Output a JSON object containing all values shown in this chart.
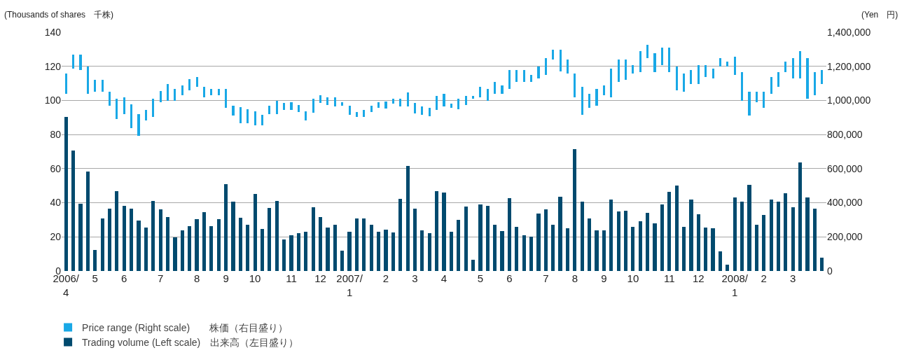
{
  "chart_data": {
    "type": "bar",
    "ylabel": "(Thousands of shares　千株)",
    "y2label": "(Yen　円)",
    "categories": [
      "2006/\n4",
      null,
      null,
      null,
      "5",
      null,
      null,
      null,
      "6",
      null,
      null,
      null,
      null,
      "7",
      null,
      null,
      null,
      null,
      "8",
      null,
      null,
      null,
      "9",
      null,
      null,
      null,
      "10",
      null,
      null,
      null,
      null,
      "11",
      null,
      null,
      null,
      "12",
      null,
      null,
      null,
      "2007/\n1",
      null,
      null,
      null,
      null,
      "2",
      null,
      null,
      null,
      "3",
      null,
      null,
      null,
      "4",
      null,
      null,
      null,
      null,
      "5",
      null,
      null,
      null,
      "6",
      null,
      null,
      null,
      null,
      "7",
      null,
      null,
      null,
      "8",
      null,
      null,
      null,
      "9",
      null,
      null,
      null,
      "10",
      null,
      null,
      null,
      null,
      "11",
      null,
      null,
      null,
      "12",
      null,
      null,
      null,
      null,
      "2008/\n1",
      null,
      null,
      null,
      "2",
      null,
      null,
      null,
      "3",
      null,
      null,
      null,
      null
    ],
    "series": [
      {
        "name": "Price range (Right scale)　　株価（右目盛り）",
        "axis": "y2",
        "color": "#19a8e6",
        "base": [
          1039000,
          1188000,
          1178000,
          1039000,
          1049000,
          1049000,
          968000,
          890000,
          919000,
          839000,
          794000,
          884000,
          905000,
          990000,
          997000,
          997000,
          1029000,
          1059000,
          1079000,
          1020000,
          1029000,
          1029000,
          958000,
          911000,
          867000,
          867000,
          854000,
          854000,
          919000,
          919000,
          945000,
          945000,
          933000,
          884000,
          929000,
          984000,
          971000,
          965000,
          970000,
          915000,
          902000,
          905000,
          930000,
          958000,
          951000,
          982000,
          965000,
          965000,
          924000,
          917000,
          909000,
          945000,
          965000,
          957000,
          950000,
          972000,
          1009000,
          1020000,
          997000,
          1039000,
          1039000,
          1068000,
          1109000,
          1109000,
          1109000,
          1129000,
          1148000,
          1239000,
          1169000,
          1159000,
          1020000,
          915000,
          958000,
          970000,
          1029000,
          1020000,
          1109000,
          1119000,
          1159000,
          1168000,
          1249000,
          1168000,
          1209000,
          1168000,
          1059000,
          1049000,
          1098000,
          1098000,
          1139000,
          1129000,
          1198000,
          1198000,
          1148000,
          997000,
          913000,
          988000,
          955000,
          1038000,
          1079000,
          1168000,
          1129000,
          1129000,
          1009000,
          1029000,
          1098000
        ],
        "values": [
          118000,
          81000,
          91000,
          159000,
          70000,
          70000,
          81000,
          118000,
          98000,
          139000,
          125000,
          61000,
          103000,
          66000,
          101000,
          71000,
          59000,
          68000,
          59000,
          59000,
          39000,
          39000,
          110000,
          57000,
          94000,
          83000,
          83000,
          61000,
          49000,
          78000,
          39000,
          43000,
          39000,
          54000,
          79000,
          45000,
          46000,
          52000,
          20000,
          55000,
          32000,
          41000,
          38000,
          32000,
          42000,
          26000,
          43000,
          82000,
          60000,
          48000,
          48000,
          83000,
          72000,
          25000,
          58000,
          56000,
          19000,
          59000,
          71000,
          69000,
          49000,
          110000,
          69000,
          69000,
          39000,
          69000,
          101000,
          59000,
          129000,
          80000,
          139000,
          164000,
          79000,
          98000,
          59000,
          168000,
          130000,
          120000,
          48000,
          121000,
          79000,
          110000,
          99000,
          140000,
          139000,
          108000,
          80000,
          111000,
          70000,
          59000,
          51000,
          30000,
          109000,
          171000,
          136000,
          61000,
          94000,
          101000,
          89000,
          60000,
          120000,
          160000,
          240000,
          139000,
          80000
        ]
      },
      {
        "name": "Trading volume (Left scale)　出来高（左目盛り）",
        "axis": "y",
        "color": "#004a6e",
        "values": [
          90.4,
          70.7,
          39.6,
          58.1,
          12.5,
          30.6,
          36.6,
          46.7,
          38.1,
          36.6,
          29.5,
          25.5,
          41.2,
          36.1,
          31.8,
          19.7,
          23.9,
          26.2,
          30.2,
          34.5,
          26.2,
          30.2,
          51.0,
          40.8,
          31.0,
          27.0,
          45.1,
          24.7,
          37.0,
          41.2,
          18.5,
          21.1,
          22.0,
          23.1,
          37.4,
          31.5,
          25.5,
          27.0,
          12.1,
          23.1,
          30.6,
          30.6,
          27.0,
          23.1,
          24.3,
          22.7,
          42.4,
          61.7,
          36.5,
          23.9,
          22.3,
          46.7,
          45.9,
          23.1,
          29.8,
          37.7,
          6.6,
          38.8,
          38.1,
          27.0,
          23.5,
          42.8,
          25.9,
          21.1,
          20.3,
          33.7,
          36.1,
          27.0,
          43.6,
          25.1,
          71.5,
          40.6,
          30.6,
          23.9,
          23.9,
          42.0,
          34.9,
          35.3,
          25.9,
          29.0,
          34.1,
          27.8,
          38.8,
          46.3,
          49.9,
          25.9,
          42.0,
          33.3,
          25.5,
          25.1,
          11.7,
          3.8,
          43.2,
          40.8,
          50.7,
          27.0,
          32.9,
          42.0,
          40.6,
          45.5,
          37.3,
          63.6,
          43.2,
          36.5,
          7.7
        ]
      }
    ],
    "ylim": [
      0,
      140
    ],
    "yticks": [
      0,
      20,
      40,
      60,
      80,
      100,
      120,
      140
    ],
    "y2lim": [
      0,
      1400000
    ],
    "y2ticks": [
      {
        "value": 0,
        "label": "0"
      },
      {
        "value": 200000,
        "label": "200,000"
      },
      {
        "value": 400000,
        "label": "400,000"
      },
      {
        "value": 600000,
        "label": "600,000"
      },
      {
        "value": 800000,
        "label": "800,000"
      },
      {
        "value": 1000000,
        "label": "1,000,000"
      },
      {
        "value": 1200000,
        "label": "1,200,000"
      },
      {
        "value": 1400000,
        "label": "1,400,000"
      }
    ],
    "grid": "y",
    "legend": "bottom left"
  }
}
